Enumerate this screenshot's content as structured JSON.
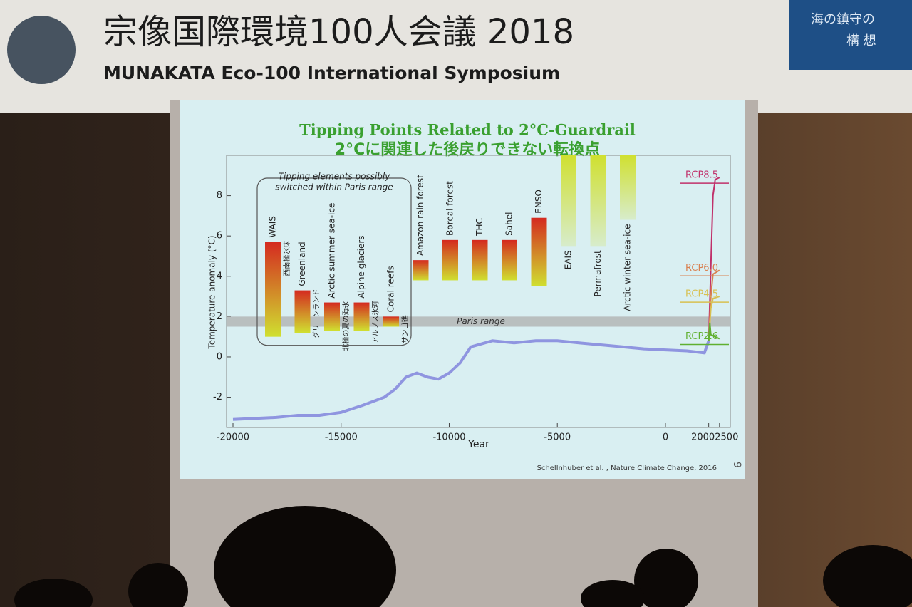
{
  "banner": {
    "title_ja": "宗像国際環境100人会議 2018",
    "title_en": "MUNAKATA Eco-100 International Symposium",
    "side_lines": [
      "海の鎮守の",
      "構 想"
    ]
  },
  "chart_data": {
    "type": "tipping",
    "title": "Tipping Points Related to 2°C-Guardrail",
    "subtitle": "2°Cに関連した後戻りできない転換点",
    "xlabel": "Year",
    "ylabel": "Temperature anomaly (°C)",
    "xlim": [
      -20000,
      3000
    ],
    "ylim": [
      -3.5,
      10
    ],
    "xticks": [
      -20000,
      -15000,
      -10000,
      -5000,
      0,
      2000,
      2500
    ],
    "yticks": [
      -2,
      0,
      2,
      4,
      6,
      8
    ],
    "bands": [
      {
        "label": "Paris range",
        "range": [
          1.5,
          2
        ],
        "color": "#b9bfbf"
      }
    ],
    "group_label": [
      "Tipping elements possibly",
      "switched within Paris range"
    ],
    "group_size": 5,
    "bar_gradient": [
      "#d42a20",
      "#d0e030"
    ],
    "categories": [
      "WAIS",
      "Greenland",
      "Arctic summer sea-ice",
      "Alpine glaciers",
      "Coral reefs",
      "Amazon rain forest",
      "Boreal forest",
      "THC",
      "Sahel",
      "ENSO",
      "EAIS",
      "Permafrost",
      "Arctic winter sea-ice"
    ],
    "labels_ja": [
      "西南極氷床",
      "グリーンランド",
      "北極の夏の海氷",
      "アルプス氷河",
      "サンゴ礁",
      null,
      null,
      null,
      null,
      null,
      null,
      null,
      null
    ],
    "low": [
      1,
      1.2,
      1.3,
      1.3,
      1.5,
      3.8,
      3.8,
      3.8,
      3.8,
      3.5,
      5.5,
      5.5,
      6.8
    ],
    "high": [
      5.7,
      3.3,
      2.7,
      2.7,
      2.0,
      4.8,
      5.8,
      5.8,
      5.8,
      6.9,
      10,
      10,
      10
    ],
    "series": [
      {
        "name": null,
        "color": "#6f6fd8",
        "x": [
          -20000,
          -18000,
          -17000,
          -16000,
          -15000,
          -14000,
          -13000,
          -12500,
          -12000,
          -11500,
          -11000,
          -10500,
          -10000,
          -9500,
          -9000,
          -8000,
          -7000,
          -6000,
          -5000,
          -4000,
          -3000,
          -2000,
          -1000,
          0,
          1000,
          1800,
          2000
        ],
        "values": [
          -3.1,
          -3.0,
          -2.9,
          -2.9,
          -2.75,
          -2.4,
          -2.0,
          -1.6,
          -1.0,
          -0.8,
          -1.0,
          -1.1,
          -0.8,
          -0.3,
          0.5,
          0.8,
          0.7,
          0.8,
          0.8,
          0.7,
          0.6,
          0.5,
          0.4,
          0.35,
          0.3,
          0.2,
          0.8
        ]
      },
      {
        "name": "RCP8.5",
        "color": "#c0306a",
        "x": [
          2000,
          2100,
          2200,
          2300,
          2500
        ],
        "values": [
          0.8,
          4.5,
          8,
          8.8,
          8.9
        ]
      },
      {
        "name": "RCP6.0",
        "color": "#d98050",
        "x": [
          2000,
          2100,
          2200,
          2500
        ],
        "values": [
          0.8,
          3.0,
          4.1,
          4.3
        ]
      },
      {
        "name": "RCP4.5",
        "color": "#d8c050",
        "x": [
          2000,
          2100,
          2200,
          2500
        ],
        "values": [
          0.8,
          2.4,
          2.9,
          3.0
        ]
      },
      {
        "name": "RCP2.6",
        "color": "#60b030",
        "x": [
          2000,
          2050,
          2100,
          2500
        ],
        "values": [
          0.8,
          1.7,
          1.1,
          0.9
        ]
      }
    ],
    "source": "Schellnhuber et al. , Nature Climate Change, 2016",
    "page_number": "9"
  }
}
